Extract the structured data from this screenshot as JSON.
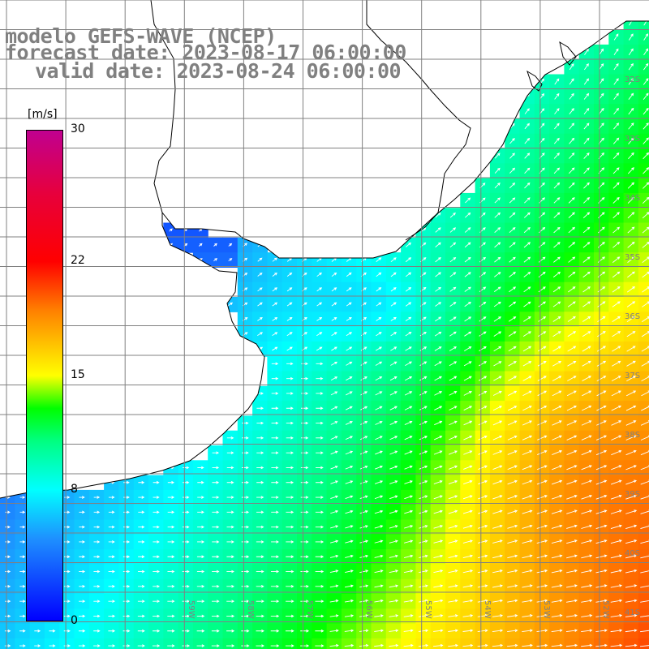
{
  "title": {
    "line1": "modelo GEFS-WAVE (NCEP)",
    "line2": "forecast date: 2023-08-17 06:00:00",
    "line3": "valid date: 2023-08-24 06:00:00"
  },
  "colorbar": {
    "unit": "[m/s]",
    "min": 0,
    "max": 30,
    "ticks": [
      "30",
      "22",
      "15",
      "8",
      "0"
    ],
    "tick_values": [
      30,
      22,
      15,
      8,
      0
    ],
    "stops": [
      {
        "value": 0,
        "color": "#0000ff"
      },
      {
        "value": 5,
        "color": "#1e90ff"
      },
      {
        "value": 8,
        "color": "#00ffff"
      },
      {
        "value": 11,
        "color": "#00ff80"
      },
      {
        "value": 13,
        "color": "#00ff00"
      },
      {
        "value": 15,
        "color": "#ffff00"
      },
      {
        "value": 19,
        "color": "#ff8000"
      },
      {
        "value": 22,
        "color": "#ff0000"
      },
      {
        "value": 26,
        "color": "#e8003a"
      },
      {
        "value": 30,
        "color": "#c00090"
      }
    ]
  },
  "map": {
    "lat_labels": [
      "32S",
      "33S",
      "34S",
      "35S",
      "36S",
      "37S",
      "38S",
      "39S",
      "40S",
      "41S"
    ],
    "lon_labels": [
      "59W",
      "58W",
      "57W",
      "56W",
      "55W",
      "54W",
      "53W",
      "52W",
      "51W"
    ],
    "land_color": "#ffffff",
    "grid_color": "#808080",
    "coast_color": "#000000",
    "arrow_color": "#ffffff"
  }
}
